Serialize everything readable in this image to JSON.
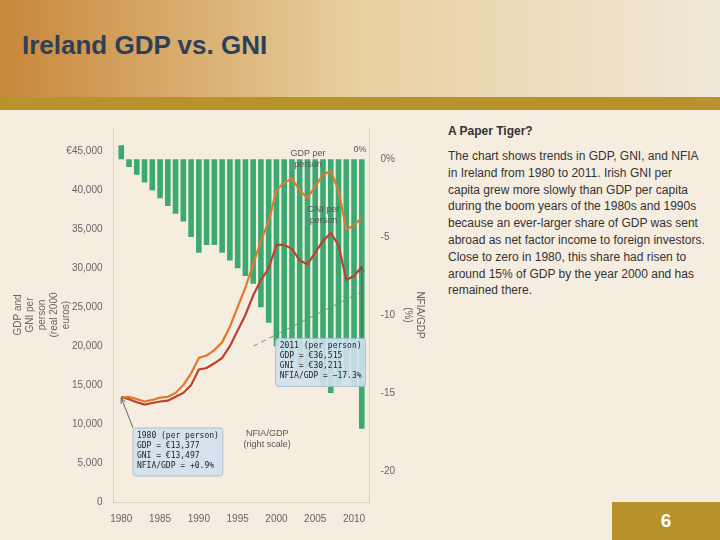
{
  "chart_data": {
    "type": "bar",
    "title": "Ireland GDP vs. GNI",
    "x": [
      1980,
      1981,
      1982,
      1983,
      1984,
      1985,
      1986,
      1987,
      1988,
      1989,
      1990,
      1991,
      1992,
      1993,
      1994,
      1995,
      1996,
      1997,
      1998,
      1999,
      2000,
      2001,
      2002,
      2003,
      2004,
      2005,
      2006,
      2007,
      2008,
      2009,
      2010,
      2011
    ],
    "xlim": [
      1979,
      2012
    ],
    "xticks": [
      1980,
      1985,
      1990,
      1995,
      2000,
      2005,
      2010
    ],
    "ylabel": "GDP and\nGNI per\nperson\n(real 2000\neuros)",
    "ylim": [
      0,
      48000
    ],
    "yticks": [
      0,
      {
        "value": 5000,
        "label": "5,000"
      },
      {
        "value": 10000,
        "label": "10,000"
      },
      {
        "value": 15000,
        "label": "15,000"
      },
      {
        "value": 20000,
        "label": "20,000"
      },
      {
        "value": 25000,
        "label": "25,000"
      },
      {
        "value": 30000,
        "label": "30,000"
      },
      {
        "value": 35000,
        "label": "35,000"
      },
      {
        "value": 40000,
        "label": "40,000"
      },
      {
        "value": 45000,
        "label": "€45,000"
      }
    ],
    "y2label": "NFIA/GDP\n(%)",
    "y2lim": [
      -22,
      2
    ],
    "y2ticks": [
      {
        "value": 0,
        "label": "0%"
      },
      -5,
      -10,
      -15,
      -20
    ],
    "grid": false,
    "series": [
      {
        "name": "NFIA/GDP\n(right scale)",
        "type": "bar",
        "axis": "y2",
        "color": "#3aaa72",
        "values": [
          0.9,
          -0.5,
          -1.0,
          -1.5,
          -2.0,
          -2.5,
          -3.0,
          -3.5,
          -4.0,
          -5.0,
          -6.0,
          -5.5,
          -5.5,
          -6.0,
          -6.5,
          -7.0,
          -7.5,
          -8.0,
          -9.5,
          -10.5,
          -12.0,
          -12.5,
          -13.0,
          -13.5,
          -13.5,
          -14.0,
          -14.5,
          -15.0,
          -14.5,
          -14.0,
          -14.5,
          -17.3
        ]
      },
      {
        "name": "GDP per\nperson",
        "type": "line",
        "color": "#e07830",
        "line_style": "solid",
        "values": [
          13377,
          13500,
          13200,
          12900,
          13100,
          13400,
          13500,
          14000,
          15000,
          16500,
          18500,
          18800,
          19500,
          20500,
          22500,
          25000,
          27500,
          30500,
          33500,
          36000,
          40000,
          41000,
          41500,
          40000,
          39000,
          40500,
          42000,
          42500,
          40000,
          35000,
          35500,
          36515
        ]
      },
      {
        "name": "GNI per\nperson",
        "type": "line",
        "color": "#c04030",
        "line_style": "solid",
        "values": [
          13497,
          13200,
          12800,
          12500,
          12700,
          12900,
          13000,
          13500,
          14000,
          15000,
          17000,
          17200,
          17800,
          18500,
          20000,
          22000,
          24000,
          26500,
          28500,
          30000,
          33000,
          33000,
          32500,
          31000,
          30500,
          32000,
          33500,
          34500,
          33000,
          28500,
          29000,
          30211
        ]
      },
      {
        "type": "line",
        "color": "#888888",
        "line_style": "dashed",
        "values": [
          null,
          null,
          null,
          null,
          null,
          null,
          null,
          null,
          null,
          null,
          null,
          null,
          null,
          null,
          null,
          null,
          null,
          20000,
          null,
          null,
          null,
          null,
          null,
          null,
          null,
          null,
          null,
          null,
          null,
          null,
          null,
          27000
        ]
      }
    ],
    "annotations": [
      {
        "text": "0%"
      },
      {
        "text": "1980 (per person)\nGDP = €13,377\nGNI = €13,497\nNFIA/GDP = +0.9%",
        "x": 1980,
        "y": 13377
      },
      {
        "text": "2011 (per person)\nGDP = €36,515\nGNI = €30,211\nNFIA/GDP = −17.3%",
        "x": 2011,
        "y": 30211
      },
      {
        "text": "A Paper Tiger?"
      },
      {
        "text": "The chart shows trends in GDP, GNI, and NFIA in Ireland from 1980 to 2011. Irish GNI per capita grew more slowly than GDP per capita during the boom years of the 1980s and 1990s because an ever-larger share of GDP was sent abroad as net factor income to foreign investors. Close to zero in 1980, this share had risen to around 15% of GDP by the year 2000 and has remained there."
      },
      {
        "text": "6"
      }
    ]
  }
}
